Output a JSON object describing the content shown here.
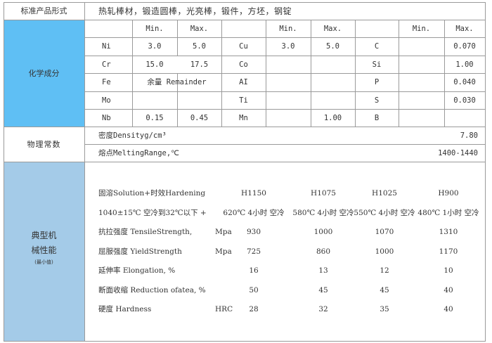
{
  "product_forms": {
    "label": "标准产品形式",
    "value": "热轧棒材，锻造圆棒，光亮棒，锻件，方坯，钢锭"
  },
  "chemical": {
    "label": "化学成分",
    "headers": [
      "",
      "Min.",
      "Max.",
      "",
      "Min.",
      "Max.",
      "",
      "Min.",
      "Max."
    ],
    "rows": [
      [
        "Ni",
        "3.0",
        "5.0",
        "Cu",
        "3.0",
        "5.0",
        "C",
        "",
        "0.070"
      ],
      [
        "Cr",
        "15.0",
        "17.5",
        "Co",
        "",
        "",
        "Si",
        "",
        "1.00"
      ],
      [
        "Fe",
        "余量 Remainder",
        "",
        "AI",
        "",
        "",
        "P",
        "",
        "0.040"
      ],
      [
        "Mo",
        "",
        "",
        "Ti",
        "",
        "",
        "S",
        "",
        "0.030"
      ],
      [
        "Nb",
        "0.15",
        "0.45",
        "Mn",
        "",
        "1.00",
        "B",
        "",
        ""
      ]
    ]
  },
  "physical": {
    "label": "物理常数",
    "rows": [
      {
        "name": "密度Densityg/cm³",
        "value": "7.80"
      },
      {
        "name": "熔点MeltingRange,℃",
        "value": "1400-1440"
      }
    ]
  },
  "mechanical": {
    "label_line1": "典型机",
    "label_line2": "械性能",
    "label_note": "(最小值)",
    "rows": [
      {
        "name": "固溶Solution+时效Hardening",
        "unit": "",
        "values": [
          "H1150",
          "H1075",
          "H1025",
          "H900"
        ]
      },
      {
        "name": "1040±15℃ 空冷到32℃以下 +",
        "unit": "",
        "values": [
          "620℃ 4小时 空冷",
          "580℃ 4小时 空冷",
          "550℃ 4小时 空冷",
          "480℃ 1小时 空冷"
        ]
      },
      {
        "name": "抗拉强度 TensileStrength,",
        "unit": "Mpa",
        "values": [
          "930",
          "1000",
          "1070",
          "1310"
        ]
      },
      {
        "name": "屈服强度 YieldStrength",
        "unit": "Mpa",
        "values": [
          "725",
          "860",
          "1000",
          "1170"
        ]
      },
      {
        "name": "延伸率 Elongation, %",
        "unit": "",
        "values": [
          "16",
          "13",
          "12",
          "10"
        ]
      },
      {
        "name": "断面收缩 Reduction ofatea, %",
        "unit": "",
        "values": [
          "50",
          "45",
          "45",
          "40"
        ]
      },
      {
        "name": "硬度 Hardness",
        "unit": "HRC",
        "values": [
          "28",
          "32",
          "35",
          "40"
        ]
      }
    ]
  },
  "colors": {
    "chemical_bg": "#5fbff4",
    "mechanical_bg": "#a4cbe8",
    "border": "#9a9a9a"
  }
}
